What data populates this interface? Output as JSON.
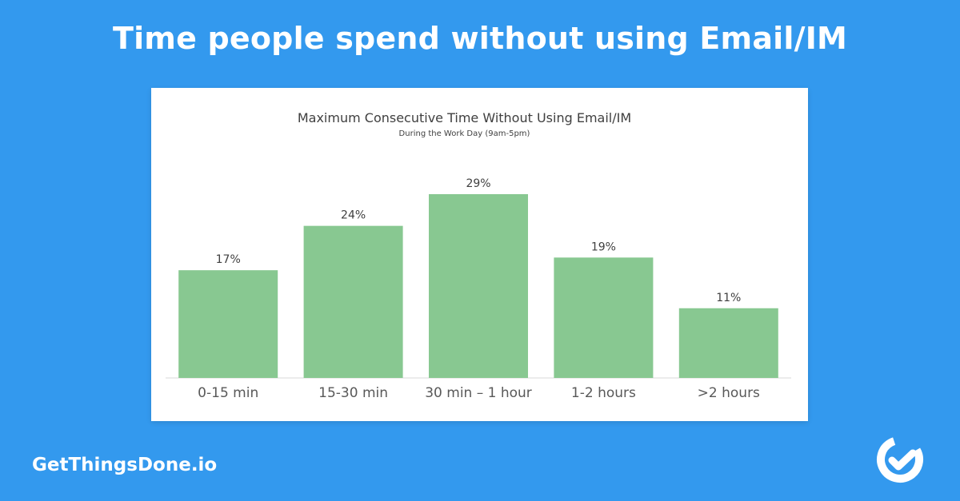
{
  "header": {
    "title": "Time people spend without using Email/IM"
  },
  "brand": {
    "name": "GetThingsDone.io",
    "logo": "gtd-logo-icon"
  },
  "colors": {
    "background": "#3399ee",
    "bar": "#88c891",
    "axis": "#d9d9d9",
    "text": "#404040",
    "tick": "#595959"
  },
  "chart_data": {
    "type": "bar",
    "title": "Maximum Consecutive Time Without Using Email/IM",
    "subtitle": "During the Work Day (9am-5pm)",
    "categories": [
      "0-15 min",
      "15-30 min",
      "30 min – 1 hour",
      "1-2 hours",
      ">2 hours"
    ],
    "values": [
      17,
      24,
      29,
      19,
      11
    ],
    "data_labels": [
      "17%",
      "24%",
      "29%",
      "19%",
      "11%"
    ],
    "unit": "%",
    "ylim": [
      0,
      29
    ],
    "grid": false,
    "legend": "none"
  }
}
